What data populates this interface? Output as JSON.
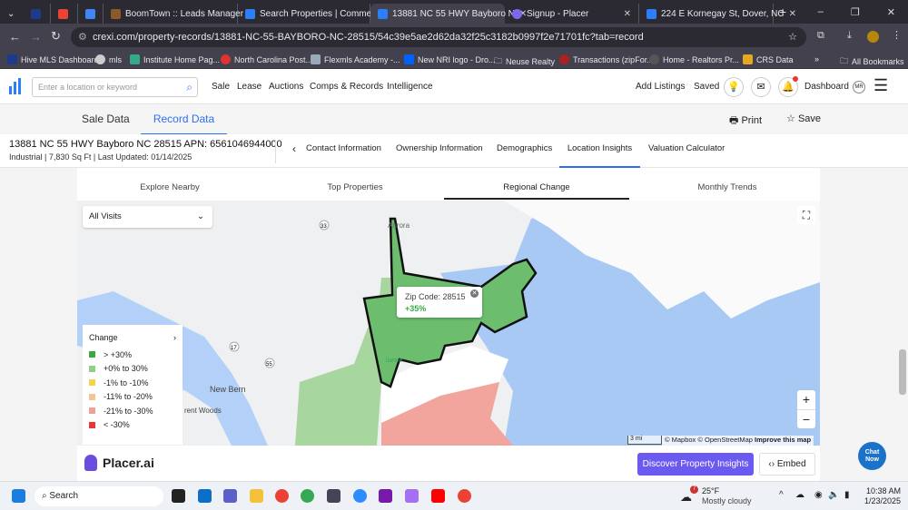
{
  "browser": {
    "tabs": [
      {
        "label": "",
        "icon": "hive-icon",
        "color": "#1e3a8a"
      },
      {
        "label": "",
        "icon": "gmail-icon",
        "color": "#ea4335"
      },
      {
        "label": "",
        "icon": "calendar-icon",
        "color": "#4285f4"
      },
      {
        "label": "BoomTown :: Leads Manager",
        "icon": "boomtown-icon",
        "color": "#8a5a2b"
      },
      {
        "label": "Search Properties | Commerci",
        "icon": "crexi-icon",
        "color": "#2d7ff9"
      },
      {
        "label": "13881 NC 55 HWY Bayboro N",
        "icon": "crexi-icon",
        "color": "#2d7ff9",
        "active": true
      },
      {
        "label": "Signup - Placer",
        "icon": "placer-icon",
        "color": "#7b68ee"
      },
      {
        "label": "224 E Kornegay St, Dover, NC",
        "icon": "crexi-icon",
        "color": "#2d7ff9"
      }
    ],
    "url": "crexi.com/property-records/13881-NC-55-BAYBORO-NC-28515/54c39e5ae2d62da32f25c3182b0997f2e71701fc?tab=record",
    "bookmarks": [
      "Hive MLS Dashboard",
      "mls",
      "Institute Home Pag...",
      "North Carolina Post...",
      "Flexmls Academy -...",
      "New NRI logo - Dro...",
      "Neuse Realty",
      "Transactions (zipFor...",
      "Home - Realtors Pr...",
      "CRS Data"
    ],
    "all_bookmarks": "All Bookmarks",
    "more": "»"
  },
  "header": {
    "search_placeholder": "Enter a location or keyword",
    "nav": [
      "Sale",
      "Lease",
      "Auctions",
      "Comps & Records",
      "Intelligence"
    ],
    "add_listings": "Add Listings",
    "saved": "Saved",
    "dashboard": "Dashboard",
    "avatar": "MR"
  },
  "subheader": {
    "tabs": [
      "Sale Data",
      "Record Data"
    ],
    "active": "Record Data",
    "print": "Print",
    "save": "Save"
  },
  "property": {
    "title": "13881 NC 55 HWY Bayboro NC 28515 APN: 6561046944000",
    "subtitle": "Industrial | 7,830 Sq Ft | Last Updated: 01/14/2025",
    "tabs": [
      "Contact Information",
      "Ownership Information",
      "Demographics",
      "Location Insights",
      "Valuation Calculator"
    ],
    "active_tab": "Location Insights"
  },
  "widget": {
    "tabs": [
      "Explore Nearby",
      "Top Properties",
      "Regional Change",
      "Monthly Trends"
    ],
    "active_tab": "Regional Change",
    "visits_select": "All Visits",
    "map_labels": {
      "aurora": "Aurora",
      "new_bern": "New Bern",
      "trent_woods": "rent Woods",
      "alliance": "liance",
      "route_33": "33",
      "route_17": "17",
      "route_55": "55"
    },
    "legend": {
      "title": "Change",
      "items": [
        {
          "label": "> +30%",
          "color": "#3aa845"
        },
        {
          "label": "+0% to 30%",
          "color": "#8fcf86"
        },
        {
          "label": "-1% to -10%",
          "color": "#f5d44b"
        },
        {
          "label": "-11% to -20%",
          "color": "#f4c58e"
        },
        {
          "label": "-21% to -30%",
          "color": "#f1a096"
        },
        {
          "label": "< -30%",
          "color": "#e8363a"
        }
      ]
    },
    "popup": {
      "title": "Zip Code: 28515",
      "value": "+35%"
    },
    "attribution": {
      "scale": "3 mi",
      "credits": "© Mapbox © OpenStreetMap",
      "improve": "Improve this map"
    },
    "brand": "Placer.ai",
    "discover_button": "Discover Property Insights",
    "embed_button": "Embed"
  },
  "chat": "Chat Now",
  "taskbar": {
    "search": "Search",
    "weather_temp": "25°F",
    "weather_desc": "Mostly cloudy",
    "weather_badge": "7",
    "time": "10:38 AM",
    "date": "1/23/2025"
  }
}
